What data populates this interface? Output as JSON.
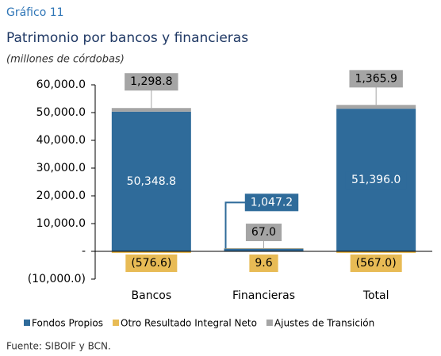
{
  "chart_data": {
    "type": "stacked_bar",
    "supertitle": "Gráfico 11",
    "title": "Patrimonio por bancos y financieras",
    "subtitle": "(millones de córdobas)",
    "source": "Fuente: SIBOIF y BCN.",
    "categories": [
      "Bancos",
      "Financieras",
      "Total"
    ],
    "series": [
      {
        "name": "Fondos Propios",
        "color": "#2f6b9a",
        "values": [
          50348.8,
          1047.2,
          51396.0
        ],
        "value_labels": [
          "50,348.8",
          "1,047.2",
          "51,396.0"
        ]
      },
      {
        "name": "Otro Resultado Integral Neto",
        "color": "#e8bb55",
        "values": [
          -576.6,
          9.6,
          -567.0
        ],
        "value_labels": [
          "(576.6)",
          "9.6",
          "(567.0)"
        ]
      },
      {
        "name": "Ajustes de Transición",
        "color": "#a5a5a5",
        "values": [
          1298.8,
          67.0,
          1365.9
        ],
        "value_labels": [
          "1,298.8",
          "67.0",
          "1,365.9"
        ]
      }
    ],
    "ylim": [
      -10000,
      60000
    ],
    "yticks": [
      {
        "value": -10000,
        "label": "(10,000.0)"
      },
      {
        "value": 0,
        "label": "-"
      },
      {
        "value": 10000,
        "label": "10,000.0"
      },
      {
        "value": 20000,
        "label": "20,000.0"
      },
      {
        "value": 30000,
        "label": "30,000.0"
      },
      {
        "value": 40000,
        "label": "40,000.0"
      },
      {
        "value": 50000,
        "label": "50,000.0"
      },
      {
        "value": 60000,
        "label": "60,000.0"
      }
    ],
    "legend": "bottom"
  }
}
